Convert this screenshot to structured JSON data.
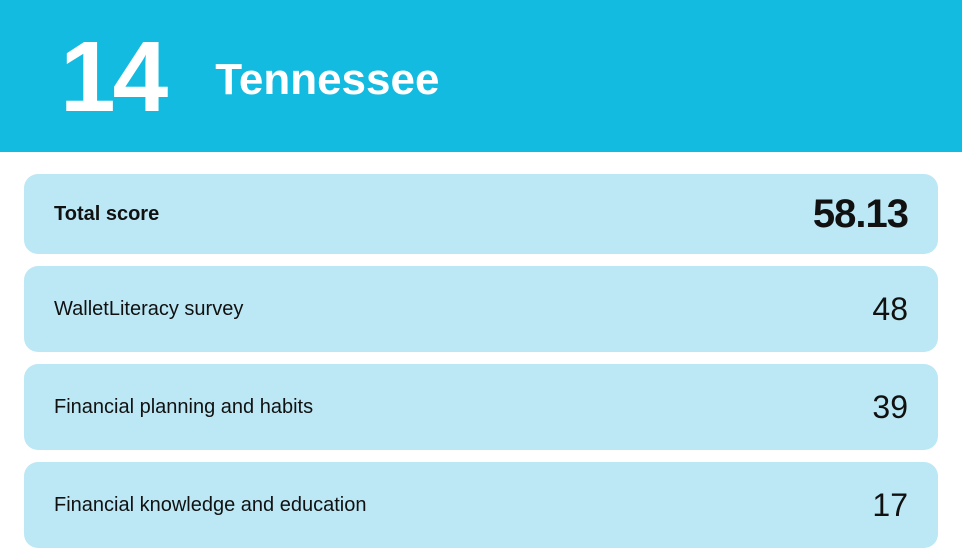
{
  "header": {
    "rank": "14",
    "state": "Tennessee",
    "bg_color": "#14bbe0",
    "text_color": "#ffffff",
    "rank_fontsize": 100,
    "state_fontsize": 44,
    "height": 152
  },
  "rows_container": {
    "row_bg_color": "#bce8f5",
    "text_color": "#111111",
    "gap": 12,
    "radius": 14
  },
  "rows": [
    {
      "label": "Total score",
      "value": "58.13",
      "type": "primary",
      "label_fontsize": 20,
      "value_fontsize": 40,
      "height": 80
    },
    {
      "label": "WalletLiteracy survey",
      "value": "48",
      "type": "secondary",
      "label_fontsize": 20,
      "value_fontsize": 32,
      "height": 86
    },
    {
      "label": "Financial planning and habits",
      "value": "39",
      "type": "secondary",
      "label_fontsize": 20,
      "value_fontsize": 32,
      "height": 86
    },
    {
      "label": "Financial knowledge and education",
      "value": "17",
      "type": "secondary",
      "label_fontsize": 20,
      "value_fontsize": 32,
      "height": 86
    }
  ]
}
